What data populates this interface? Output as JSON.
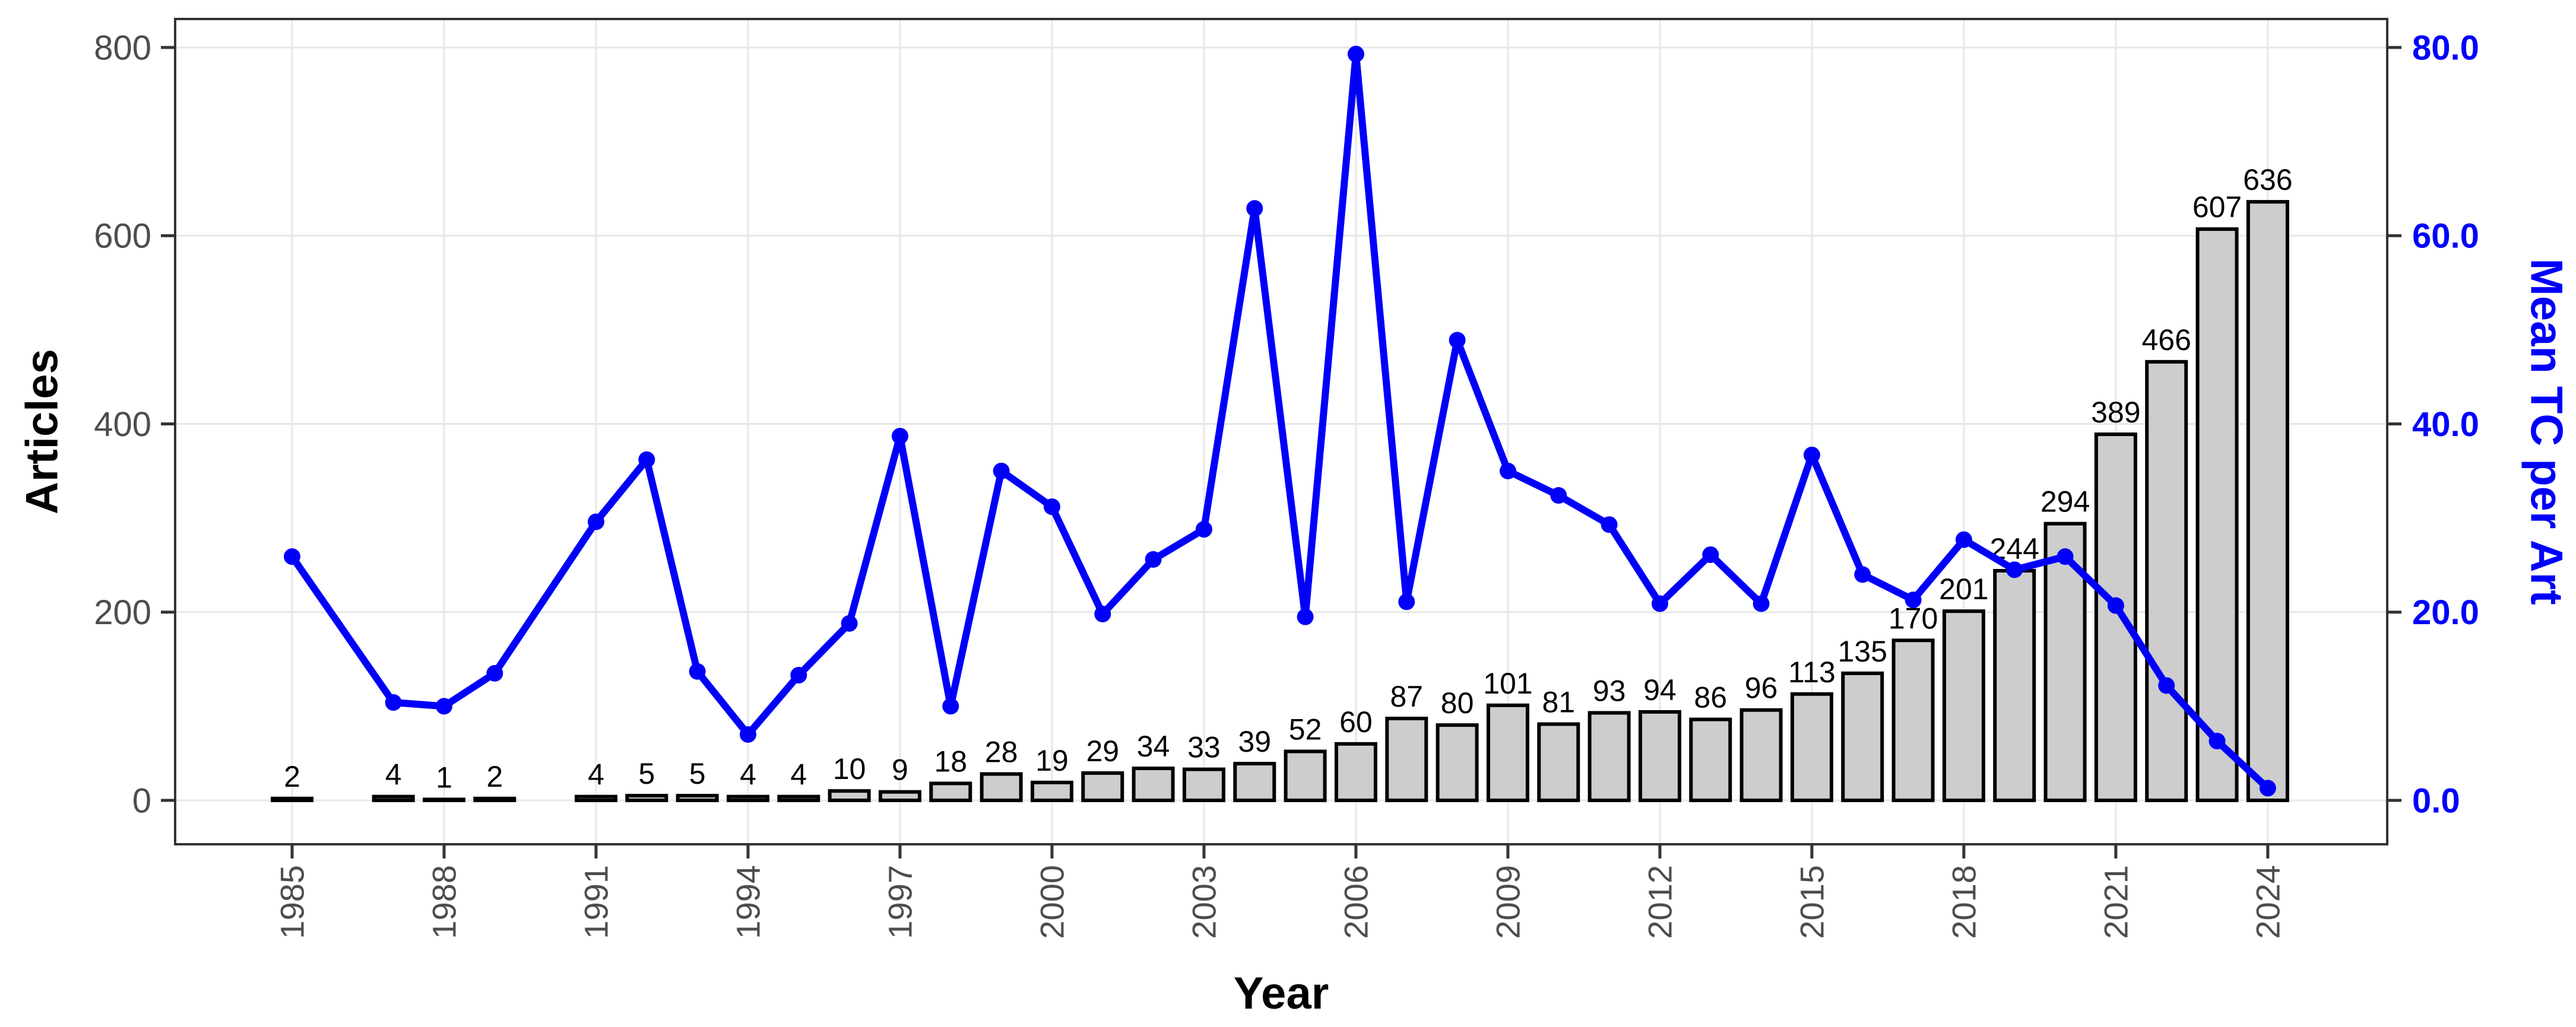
{
  "chart_data": {
    "type": "combo-bar-line",
    "x": [
      1985,
      1986,
      1987,
      1988,
      1989,
      1990,
      1991,
      1992,
      1993,
      1994,
      1995,
      1996,
      1997,
      1998,
      1999,
      2000,
      2001,
      2002,
      2003,
      2004,
      2005,
      2006,
      2007,
      2008,
      2009,
      2010,
      2011,
      2012,
      2013,
      2014,
      2015,
      2016,
      2017,
      2018,
      2019,
      2020,
      2021,
      2022,
      2023,
      2024
    ],
    "series": [
      {
        "name": "Articles",
        "type": "bar",
        "axis": "left",
        "values": [
          2,
          0,
          4,
          1,
          2,
          0,
          4,
          5,
          5,
          4,
          4,
          10,
          9,
          18,
          28,
          19,
          29,
          34,
          33,
          39,
          52,
          60,
          87,
          80,
          101,
          81,
          93,
          94,
          86,
          96,
          113,
          135,
          170,
          201,
          244,
          294,
          389,
          466,
          607,
          636
        ],
        "labels_shown": true
      },
      {
        "name": "Mean TC per Art",
        "type": "line",
        "axis": "right",
        "values": [
          25.9,
          null,
          10.4,
          10.0,
          13.5,
          null,
          29.6,
          36.2,
          13.7,
          7.0,
          13.3,
          18.8,
          38.7,
          10.0,
          35.0,
          31.2,
          19.8,
          25.6,
          28.8,
          62.9,
          19.5,
          79.3,
          21.1,
          48.9,
          35.0,
          32.4,
          29.3,
          20.9,
          26.1,
          20.9,
          36.7,
          24.0,
          21.3,
          27.7,
          24.5,
          25.9,
          20.7,
          12.2,
          6.3,
          1.3
        ]
      }
    ],
    "left_axis": {
      "title": "Articles",
      "tick_labels": [
        "0",
        "200",
        "400",
        "600",
        "800"
      ],
      "tick_values": [
        0,
        200,
        400,
        600,
        800
      ],
      "range": [
        0,
        830
      ]
    },
    "right_axis": {
      "title": "Mean TC per Art",
      "tick_labels": [
        "0.0",
        "20.0",
        "40.0",
        "60.0",
        "80.0"
      ],
      "tick_values": [
        0,
        20,
        40,
        60,
        80
      ],
      "range": [
        0,
        83
      ]
    },
    "x_axis": {
      "title": "Year",
      "tick_years": [
        1985,
        1988,
        1991,
        1994,
        1997,
        2000,
        2003,
        2006,
        2009,
        2012,
        2015,
        2018,
        2021,
        2024
      ]
    },
    "grid": "major-on",
    "legend": "none",
    "colors": {
      "bar_fill": "#cdcdcd",
      "bar_stroke": "#000000",
      "line": "#0000fa",
      "right_axis_text": "#0000fa",
      "tick_text": "#4d4d4d",
      "bar_label_text": "#000000",
      "axis_title_text": "#000000",
      "grid_line": "#e7e7e7",
      "panel_border": "#333333",
      "background": "#ffffff"
    }
  }
}
